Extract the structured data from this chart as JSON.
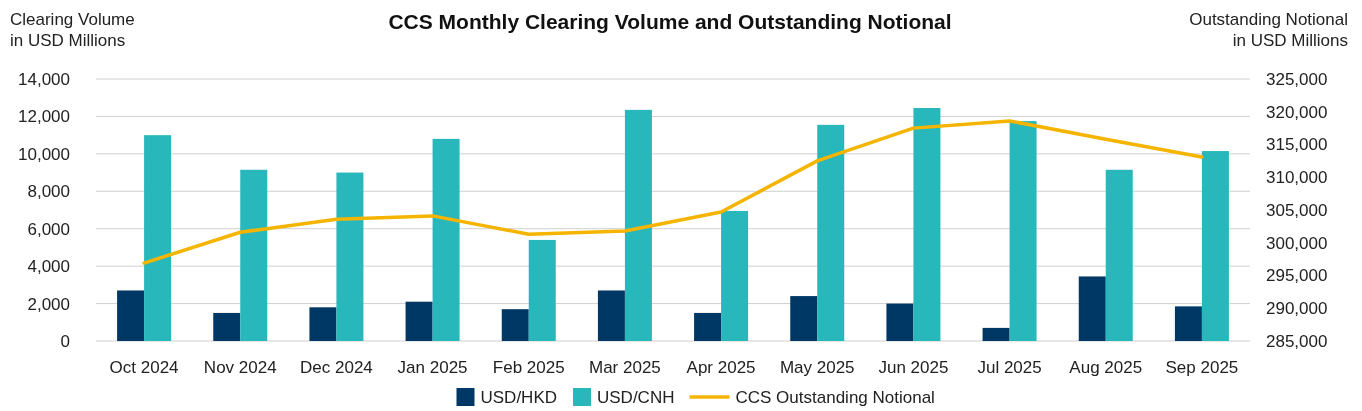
{
  "chart_data": {
    "type": "bar",
    "title": "CCS Monthly Clearing Volume and Outstanding Notional",
    "ylabel": "Clearing Volume\nin USD Millions",
    "y2label": "Outstanding Notional\nin USD Millions",
    "categories": [
      "Oct 2024",
      "Nov 2024",
      "Dec 2024",
      "Jan 2025",
      "Feb 2025",
      "Mar 2025",
      "Apr 2025",
      "May 2025",
      "Jun 2025",
      "Jul 2025",
      "Aug 2025",
      "Sep 2025"
    ],
    "series": [
      {
        "name": "USD/HKD",
        "color": "#003865",
        "values": [
          2700,
          1500,
          1800,
          2100,
          1700,
          2700,
          1500,
          2400,
          2000,
          700,
          3450,
          1850
        ]
      },
      {
        "name": "USD/CNH",
        "color": "#28b8bc",
        "values": [
          11000,
          9150,
          9000,
          10800,
          5400,
          12350,
          6950,
          11550,
          12450,
          11750,
          9150,
          10150
        ]
      },
      {
        "name": "CCS Outstanding Notional",
        "type": "line",
        "axis": "y2",
        "color": "#f5b400",
        "values": [
          296900,
          301600,
          303600,
          304100,
          301300,
          301800,
          304700,
          312500,
          317500,
          318600,
          315800,
          313100
        ]
      }
    ],
    "ylim": [
      0,
      14000
    ],
    "yticks": [
      0,
      {
        "value": 2000,
        "label": "2,000"
      },
      {
        "value": 4000,
        "label": "4,000"
      },
      {
        "value": 6000,
        "label": "6,000"
      },
      {
        "value": 8000,
        "label": "8,000"
      },
      {
        "value": 10000,
        "label": "10,000"
      },
      {
        "value": 12000,
        "label": "12,000"
      },
      {
        "value": 14000,
        "label": "14,000"
      }
    ],
    "y2lim": [
      285000,
      325000
    ],
    "y2ticks": [
      {
        "value": 285000,
        "label": "285,000"
      },
      {
        "value": 290000,
        "label": "290,000"
      },
      {
        "value": 295000,
        "label": "295,000"
      },
      {
        "value": 300000,
        "label": "300,000"
      },
      {
        "value": 305000,
        "label": "305,000"
      },
      {
        "value": 310000,
        "label": "310,000"
      },
      {
        "value": 315000,
        "label": "315,000"
      },
      {
        "value": 320000,
        "label": "320,000"
      },
      {
        "value": 325000,
        "label": "325,000"
      }
    ],
    "grid": "y",
    "legend": "bottom",
    "marker": "none",
    "line_style": "solid"
  }
}
